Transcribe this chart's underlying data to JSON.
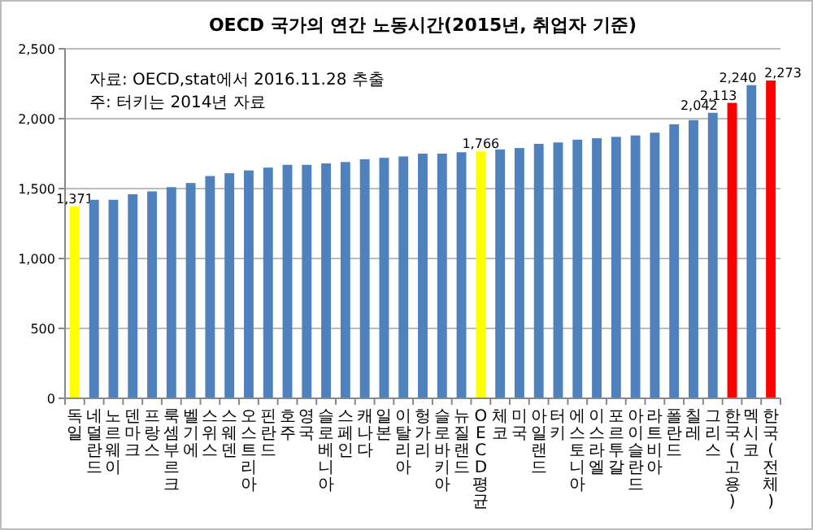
{
  "chart_data": {
    "type": "bar",
    "title": "OECD 국가의 연간 노동시간(2015년, 취업자 기준)",
    "categories": [
      "독일",
      "네덜란드",
      "노르웨이",
      "덴마크",
      "프랑스",
      "룩셈부르크",
      "벨기에",
      "스위스",
      "스웨덴",
      "오스트리아",
      "핀란드",
      "호주",
      "영국",
      "슬로베니아",
      "스페인",
      "캐나다",
      "일본",
      "이탈리아",
      "헝가리",
      "슬로바키아",
      "뉴질랜드",
      "OECD평균",
      "체코",
      "미국",
      "아일랜드",
      "터키",
      "에스토니아",
      "이스라엘",
      "포르투갈",
      "아이슬란드",
      "라트비아",
      "폴란드",
      "칠레",
      "그리스",
      "한국(고용)",
      "멕시코",
      "한국(전체)"
    ],
    "values": [
      1371,
      1420,
      1420,
      1460,
      1480,
      1510,
      1540,
      1590,
      1610,
      1630,
      1650,
      1670,
      1670,
      1680,
      1690,
      1710,
      1720,
      1730,
      1750,
      1750,
      1760,
      1766,
      1780,
      1790,
      1820,
      1830,
      1850,
      1860,
      1870,
      1880,
      1900,
      1960,
      1990,
      2042,
      2113,
      2240,
      2273
    ],
    "colors": [
      "#ffff00",
      "#4f81bd",
      "#4f81bd",
      "#4f81bd",
      "#4f81bd",
      "#4f81bd",
      "#4f81bd",
      "#4f81bd",
      "#4f81bd",
      "#4f81bd",
      "#4f81bd",
      "#4f81bd",
      "#4f81bd",
      "#4f81bd",
      "#4f81bd",
      "#4f81bd",
      "#4f81bd",
      "#4f81bd",
      "#4f81bd",
      "#4f81bd",
      "#4f81bd",
      "#ffff00",
      "#4f81bd",
      "#4f81bd",
      "#4f81bd",
      "#4f81bd",
      "#4f81bd",
      "#4f81bd",
      "#4f81bd",
      "#4f81bd",
      "#4f81bd",
      "#4f81bd",
      "#4f81bd",
      "#4f81bd",
      "#ff0000",
      "#4f81bd",
      "#ff0000"
    ],
    "value_labels": [
      "1,371",
      null,
      null,
      null,
      null,
      null,
      null,
      null,
      null,
      null,
      null,
      null,
      null,
      null,
      null,
      null,
      null,
      null,
      null,
      null,
      null,
      "1,766",
      null,
      null,
      null,
      null,
      null,
      null,
      null,
      null,
      null,
      null,
      null,
      "2,042",
      "2,113",
      "2,240",
      "2,273"
    ],
    "ylim": [
      0,
      2500
    ],
    "yticks": [
      {
        "value": 0,
        "label": "0"
      },
      {
        "value": 500,
        "label": "500"
      },
      {
        "value": 1000,
        "label": "1,000"
      },
      {
        "value": 1500,
        "label": "1,500"
      },
      {
        "value": 2000,
        "label": "2,000"
      },
      {
        "value": 2500,
        "label": "2,500"
      }
    ],
    "grid": "y",
    "annotations": [
      "자료: OECD,stat에서 2016.11.28 추출",
      "주: 터키는 2014년 자료"
    ]
  }
}
